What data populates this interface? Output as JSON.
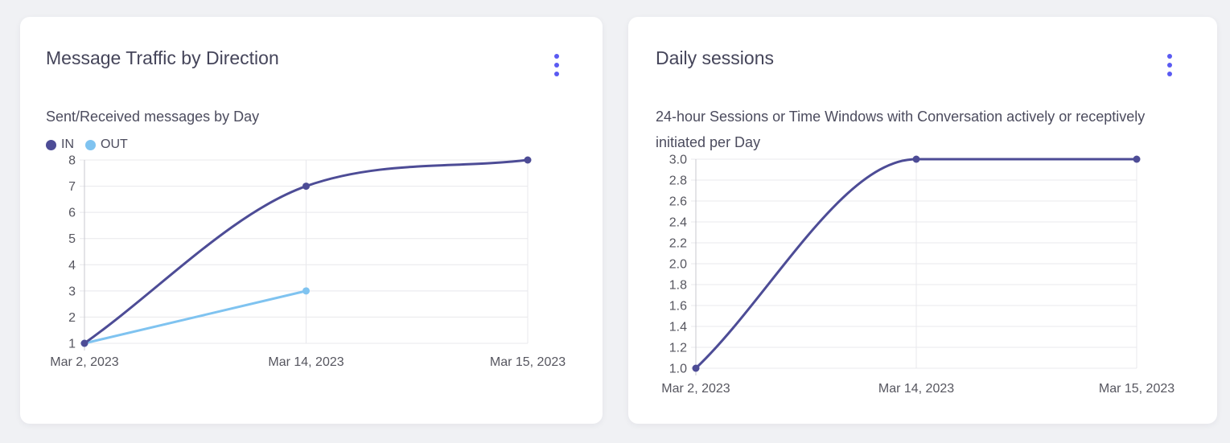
{
  "page": {
    "background": "#f0f1f4"
  },
  "colors": {
    "menu_accent": "#5a5af2",
    "grid": "#e8e8ec",
    "axis": "#c9c9cf",
    "tick_text": "#56565f"
  },
  "cards": [
    {
      "title": "Message Traffic by Direction",
      "subtitle": "Sent/Received messages by Day",
      "menu_icon": "kebab-menu",
      "legend": [
        {
          "label": "IN",
          "color": "#4d4c96"
        },
        {
          "label": "OUT",
          "color": "#7fc3f0"
        }
      ],
      "chart_data": {
        "type": "line",
        "title": "Message Traffic by Direction",
        "subtitle": "Sent/Received messages by Day",
        "x": [
          "Mar 2, 2023",
          "Mar 14, 2023",
          "Mar 15, 2023"
        ],
        "series": [
          {
            "name": "IN",
            "color": "#4d4c96",
            "values": [
              1,
              7,
              8
            ]
          },
          {
            "name": "OUT",
            "color": "#7fc3f0",
            "values": [
              1,
              3,
              null
            ]
          }
        ],
        "ylim": [
          1,
          8
        ],
        "ytick_labels": [
          "1",
          "2",
          "3",
          "4",
          "5",
          "6",
          "7",
          "8"
        ],
        "grid": true,
        "smooth": true,
        "legend_position": "top-left"
      }
    },
    {
      "title": "Daily sessions",
      "subtitle": "24-hour Sessions or Time Windows with Conversation actively or receptively initiated per Day",
      "menu_icon": "kebab-menu",
      "legend": [],
      "chart_data": {
        "type": "line",
        "title": "Daily sessions",
        "subtitle": "24-hour Sessions or Time Windows with Conversation actively or receptively initiated per Day",
        "x": [
          "Mar 2, 2023",
          "Mar 14, 2023",
          "Mar 15, 2023"
        ],
        "series": [
          {
            "name": "Daily sessions",
            "color": "#4d4c96",
            "values": [
              1.0,
              3.0,
              3.0
            ]
          }
        ],
        "ylim": [
          1.0,
          3.0
        ],
        "ytick_labels": [
          "1.0",
          "1.2",
          "1.4",
          "1.6",
          "1.8",
          "2.0",
          "2.2",
          "2.4",
          "2.6",
          "2.8",
          "3.0"
        ],
        "grid": true,
        "smooth": true,
        "legend_position": "none"
      }
    }
  ]
}
